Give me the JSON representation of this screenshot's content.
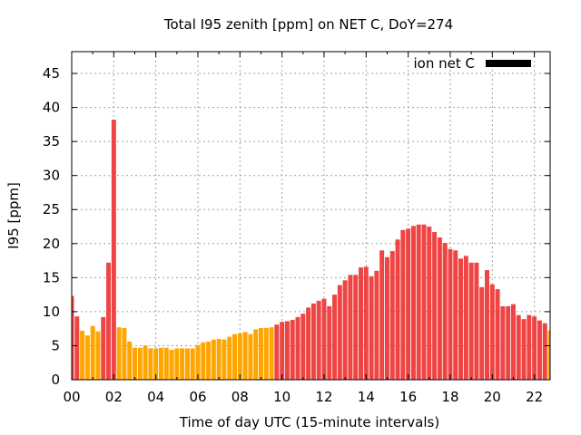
{
  "chart_data": {
    "type": "bar",
    "title": "Total I95 zenith [ppm] on NET C, DoY=274",
    "xlabel": "Time of day UTC (15-minute intervals)",
    "ylabel": "I95 [ppm]",
    "xlim": [
      0,
      22.75
    ],
    "ylim": [
      0,
      48.2
    ],
    "x_ticks": [
      "00",
      "02",
      "04",
      "06",
      "08",
      "10",
      "12",
      "14",
      "16",
      "18",
      "20",
      "22"
    ],
    "x_tick_values": [
      0,
      2,
      4,
      6,
      8,
      10,
      12,
      14,
      16,
      18,
      20,
      22
    ],
    "y_ticks": [
      "0",
      "5",
      "10",
      "15",
      "20",
      "25",
      "30",
      "35",
      "40",
      "45"
    ],
    "y_tick_values": [
      0,
      5,
      10,
      15,
      20,
      25,
      30,
      35,
      40,
      45
    ],
    "grid": true,
    "legend": {
      "label": "ion net C",
      "position": "top-right",
      "swatch_color": "#000000"
    },
    "bar_interval_hours": 0.25,
    "colors": {
      "red": "#ee4444",
      "orange": "#ffa500"
    },
    "series": [
      {
        "name": "ion net C",
        "values": [
          12.3,
          9.3,
          7.2,
          6.5,
          7.9,
          7.1,
          9.2,
          17.2,
          38.2,
          7.7,
          7.6,
          5.6,
          4.7,
          4.7,
          5.0,
          4.6,
          4.6,
          4.7,
          4.7,
          4.4,
          4.6,
          4.6,
          4.6,
          4.6,
          5.1,
          5.5,
          5.6,
          5.9,
          6.0,
          5.9,
          6.3,
          6.7,
          6.8,
          7.0,
          6.7,
          7.4,
          7.6,
          7.6,
          7.7,
          8.1,
          8.5,
          8.6,
          8.8,
          9.2,
          9.7,
          10.6,
          11.2,
          11.6,
          11.9,
          10.8,
          12.5,
          13.9,
          14.6,
          15.4,
          15.4,
          16.5,
          16.6,
          15.2,
          16.0,
          19.0,
          18.0,
          18.9,
          20.6,
          22.0,
          22.2,
          22.6,
          22.8,
          22.8,
          22.5,
          21.7,
          20.9,
          20.1,
          19.2,
          19.0,
          17.8,
          18.2,
          17.2,
          17.2,
          13.6,
          16.1,
          14.0,
          13.3,
          10.8,
          10.8,
          11.1,
          9.5,
          8.9,
          9.5,
          9.3,
          8.7,
          8.3,
          7.2
        ],
        "color_class": [
          "red",
          "red",
          "orange",
          "orange",
          "orange",
          "orange",
          "red",
          "red",
          "red",
          "orange",
          "orange",
          "orange",
          "orange",
          "orange",
          "orange",
          "orange",
          "orange",
          "orange",
          "orange",
          "orange",
          "orange",
          "orange",
          "orange",
          "orange",
          "orange",
          "orange",
          "orange",
          "orange",
          "orange",
          "orange",
          "orange",
          "orange",
          "orange",
          "orange",
          "orange",
          "orange",
          "orange",
          "orange",
          "orange",
          "red",
          "red",
          "red",
          "red",
          "red",
          "red",
          "red",
          "red",
          "red",
          "red",
          "red",
          "red",
          "red",
          "red",
          "red",
          "red",
          "red",
          "red",
          "red",
          "red",
          "red",
          "red",
          "red",
          "red",
          "red",
          "red",
          "red",
          "red",
          "red",
          "red",
          "red",
          "red",
          "red",
          "red",
          "red",
          "red",
          "red",
          "red",
          "red",
          "red",
          "red",
          "red",
          "red",
          "red",
          "red",
          "red",
          "red",
          "red",
          "red",
          "red",
          "red",
          "red",
          "orange"
        ]
      }
    ]
  }
}
